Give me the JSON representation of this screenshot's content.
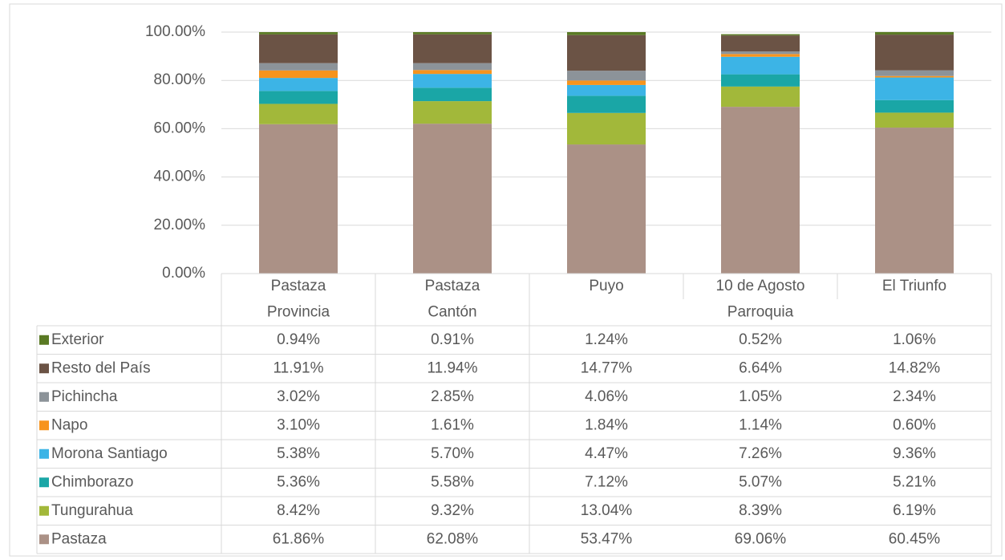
{
  "chart_data": {
    "type": "stacked_bar",
    "categories": [
      "Pastaza",
      "Pastaza",
      "Puyo",
      "10 de Agosto",
      "El Triunfo"
    ],
    "category_groups": [
      {
        "label": "Provincia",
        "count": 1
      },
      {
        "label": "Cantón",
        "count": 1
      },
      {
        "label": "Parroquia",
        "count": 3
      }
    ],
    "ylim": [
      0,
      100
    ],
    "yticks": [
      {
        "value": 0,
        "label": "0.00%"
      },
      {
        "value": 20,
        "label": "20.00%"
      },
      {
        "value": 40,
        "label": "40.00%"
      },
      {
        "value": 60,
        "label": "60.00%"
      },
      {
        "value": 80,
        "label": "80.00%"
      },
      {
        "value": 100,
        "label": "100.00%"
      }
    ],
    "series": [
      {
        "name": "Exterior",
        "color": "#5a7a24",
        "values": [
          0.94,
          0.91,
          1.24,
          0.52,
          1.06
        ],
        "value_labels": [
          "0.94%",
          "0.91%",
          "1.24%",
          "0.52%",
          "1.06%"
        ]
      },
      {
        "name": "Resto del País",
        "color": "#6b5345",
        "values": [
          11.91,
          11.94,
          14.77,
          6.64,
          14.82
        ],
        "value_labels": [
          "11.91%",
          "11.94%",
          "14.77%",
          "6.64%",
          "14.82%"
        ]
      },
      {
        "name": "Pichincha",
        "color": "#8c9399",
        "values": [
          3.02,
          2.85,
          4.06,
          1.05,
          2.34
        ],
        "value_labels": [
          "3.02%",
          "2.85%",
          "4.06%",
          "1.05%",
          "2.34%"
        ]
      },
      {
        "name": "Napo",
        "color": "#f7941d",
        "values": [
          3.1,
          1.61,
          1.84,
          1.14,
          0.6
        ],
        "value_labels": [
          "3.10%",
          "1.61%",
          "1.84%",
          "1.14%",
          "0.60%"
        ]
      },
      {
        "name": "Morona Santiago",
        "color": "#3cb4e6",
        "values": [
          5.38,
          5.7,
          4.47,
          7.26,
          9.36
        ],
        "value_labels": [
          "5.38%",
          "5.70%",
          "4.47%",
          "7.26%",
          "9.36%"
        ]
      },
      {
        "name": "Chimborazo",
        "color": "#1aa6a6",
        "values": [
          5.36,
          5.58,
          7.12,
          5.07,
          5.21
        ],
        "value_labels": [
          "5.36%",
          "5.58%",
          "7.12%",
          "5.07%",
          "5.21%"
        ]
      },
      {
        "name": "Tungurahua",
        "color": "#a2b83a",
        "values": [
          8.42,
          9.32,
          13.04,
          8.39,
          6.19
        ],
        "value_labels": [
          "8.42%",
          "9.32%",
          "13.04%",
          "8.39%",
          "6.19%"
        ]
      },
      {
        "name": "Pastaza",
        "color": "#ab9186",
        "values": [
          61.86,
          62.08,
          53.47,
          69.06,
          60.45
        ],
        "value_labels": [
          "61.86%",
          "62.08%",
          "53.47%",
          "69.06%",
          "60.45%"
        ]
      }
    ]
  }
}
